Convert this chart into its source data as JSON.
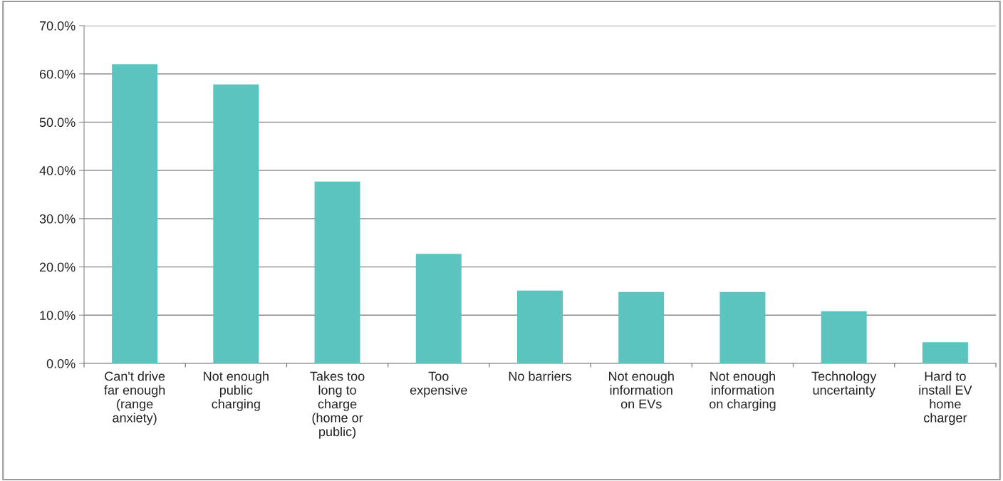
{
  "chart_data": {
    "type": "bar",
    "categories": [
      "Can't drive\nfar enough\n(range\nanxiety)",
      "Not enough\npublic\ncharging",
      "Takes too\nlong to\ncharge\n(home or\npublic)",
      "Too\nexpensive",
      "No barriers",
      "Not enough\ninformation\non EVs",
      "Not enough\ninformation\non charging",
      "Technology\nuncertainty",
      "Hard to\ninstall EV\nhome\ncharger"
    ],
    "values": [
      62.0,
      57.8,
      37.7,
      22.7,
      15.1,
      14.8,
      14.8,
      10.8,
      4.4
    ],
    "color": "#5bc4be",
    "ylim": [
      0,
      70
    ],
    "yticks": [
      {
        "value": 0,
        "label": "0.0%"
      },
      {
        "value": 10,
        "label": "10.0%"
      },
      {
        "value": 20,
        "label": "20.0%"
      },
      {
        "value": 30,
        "label": "30.0%"
      },
      {
        "value": 40,
        "label": "40.0%"
      },
      {
        "value": 50,
        "label": "50.0%"
      },
      {
        "value": 60,
        "label": "60.0%"
      },
      {
        "value": 70,
        "label": "70.0%"
      }
    ],
    "grid": "y"
  }
}
